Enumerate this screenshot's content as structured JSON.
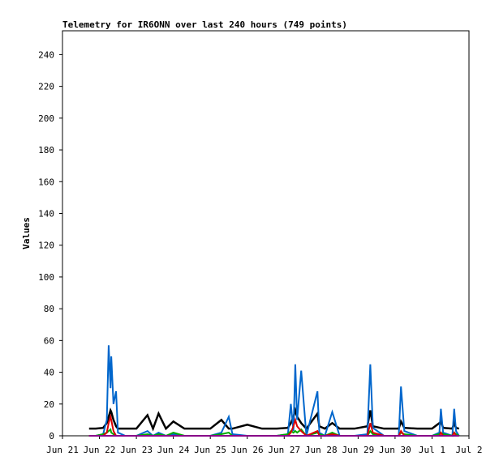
{
  "chart_data": {
    "type": "line",
    "title": "Telemetry for IR6ONN over last 240 hours (749 points)",
    "y_label": "Values",
    "x": [
      0.72,
      0.9,
      1.1,
      1.2,
      1.25,
      1.3,
      1.32,
      1.38,
      1.45,
      1.5,
      1.7,
      2.0,
      2.3,
      2.45,
      2.6,
      2.8,
      3.0,
      3.3,
      3.7,
      4.0,
      4.3,
      4.5,
      4.6,
      5.0,
      5.4,
      5.8,
      6.1,
      6.18,
      6.25,
      6.3,
      6.35,
      6.46,
      6.6,
      6.9,
      6.95,
      7.1,
      7.3,
      7.5,
      7.9,
      8.25,
      8.33,
      8.4,
      8.7,
      9.1,
      9.16,
      9.25,
      9.6,
      10.0,
      10.2,
      10.24,
      10.3,
      10.55,
      10.6,
      10.65,
      10.73
    ],
    "series": [
      {
        "color": "#000000",
        "values": [
          4.5,
          4.5,
          5,
          8,
          12,
          16,
          15,
          10,
          6,
          4.5,
          4.5,
          4.5,
          13,
          4.5,
          14,
          4.5,
          9,
          4.5,
          4.5,
          4.5,
          10,
          4.5,
          4.5,
          7,
          4.5,
          4.5,
          5,
          8,
          12,
          16,
          12,
          8,
          4.5,
          14,
          6,
          4.5,
          8,
          4.5,
          4.5,
          6,
          16,
          6,
          4.5,
          4.5,
          9,
          5,
          4.5,
          4.5,
          8,
          9,
          5,
          4.5,
          8,
          5,
          4.5
        ]
      },
      {
        "color": "#0066cc",
        "values": [
          0,
          0,
          1,
          10,
          57,
          30,
          50,
          20,
          28,
          2,
          0,
          0,
          3,
          0,
          2,
          0,
          1,
          0,
          0,
          0,
          2,
          12,
          1,
          0,
          0,
          0,
          1,
          20,
          3,
          45,
          10,
          41,
          0,
          28,
          2,
          0,
          15,
          0,
          0,
          1,
          45,
          5,
          0,
          0,
          31,
          3,
          0,
          0,
          2,
          17,
          2,
          0,
          17,
          3,
          0
        ]
      },
      {
        "color": "#00aa00",
        "values": [
          0,
          0,
          1,
          2,
          3,
          4,
          2,
          1,
          0,
          0,
          0,
          0,
          1,
          0,
          1,
          0,
          2,
          0,
          0,
          0,
          1,
          2,
          0,
          0,
          0,
          0,
          1,
          3,
          2,
          3,
          2,
          4,
          0,
          2,
          1,
          0,
          2,
          0,
          0,
          0,
          3,
          1,
          0,
          0,
          2,
          1,
          0,
          0,
          1,
          2,
          1,
          0,
          2,
          1,
          0
        ]
      },
      {
        "color": "#dd0000",
        "values": [
          0,
          0,
          0,
          2,
          8,
          12,
          10,
          3,
          0,
          0,
          0,
          0,
          0,
          0,
          0,
          0,
          0,
          0,
          0,
          0,
          0,
          0,
          0,
          0,
          0,
          0,
          0,
          2,
          6,
          10,
          6,
          3,
          0,
          3,
          0,
          0,
          1,
          0,
          0,
          0,
          8,
          2,
          0,
          0,
          3,
          0,
          0,
          0,
          0,
          2,
          0,
          0,
          2,
          0,
          0
        ]
      },
      {
        "color": "#880088",
        "values": [
          0,
          0,
          0,
          0,
          0,
          0,
          0,
          0,
          0,
          0,
          0,
          0,
          0,
          0,
          0,
          0,
          0,
          0,
          0,
          0,
          0,
          0,
          0,
          0,
          0,
          0,
          0,
          0,
          0,
          0,
          0,
          0,
          0,
          0,
          0,
          0,
          0,
          0,
          0,
          0,
          0,
          0,
          0,
          0,
          0,
          0,
          0,
          0,
          0,
          0,
          0,
          0,
          0,
          0,
          0
        ]
      }
    ],
    "xlim": [
      0,
      11
    ],
    "xticks": [
      {
        "value": 0,
        "label": "Jun 21"
      },
      {
        "value": 1,
        "label": "Jun 22"
      },
      {
        "value": 2,
        "label": "Jun 23"
      },
      {
        "value": 3,
        "label": "Jun 24"
      },
      {
        "value": 4,
        "label": "Jun 25"
      },
      {
        "value": 5,
        "label": "Jun 26"
      },
      {
        "value": 6,
        "label": "Jun 27"
      },
      {
        "value": 7,
        "label": "Jun 28"
      },
      {
        "value": 8,
        "label": "Jun 29"
      },
      {
        "value": 9,
        "label": "Jun 30"
      },
      {
        "value": 10,
        "label": "Jul 1"
      },
      {
        "value": 11,
        "label": "Jul 2"
      }
    ],
    "ylim": [
      0,
      255
    ],
    "yticks": [
      0,
      20,
      40,
      60,
      80,
      100,
      120,
      140,
      160,
      180,
      200,
      220,
      240
    ],
    "grid": false
  }
}
